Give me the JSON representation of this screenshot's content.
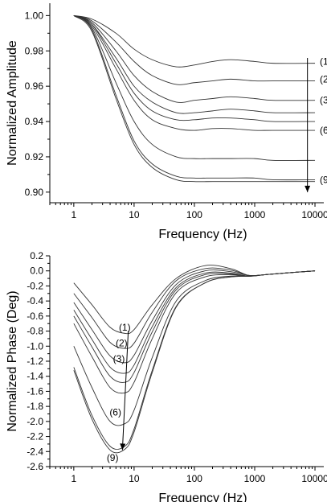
{
  "chart_data": [
    {
      "type": "line",
      "xscale": "log",
      "xlim": [
        0.4,
        14000
      ],
      "ylim": [
        0.894,
        1.007
      ],
      "xlabel": "Frequency (Hz)",
      "ylabel": "Normalized Amplitude",
      "xticks": [
        1,
        10,
        100,
        1000,
        10000
      ],
      "xtick_labels": [
        "1",
        "10",
        "100",
        "1000",
        "10000"
      ],
      "yticks": [
        0.9,
        0.92,
        0.94,
        0.96,
        0.98,
        1.0
      ],
      "ytick_labels": [
        "0.90",
        "0.92",
        "0.94",
        "0.96",
        "0.98",
        "1.00"
      ],
      "grid": false,
      "annotations": [
        {
          "text": "(1)",
          "x": 12000,
          "y": 0.974
        },
        {
          "text": "(2)",
          "x": 12000,
          "y": 0.964
        },
        {
          "text": "(3)",
          "x": 12000,
          "y": 0.952
        },
        {
          "text": "(6)",
          "x": 12000,
          "y": 0.935
        },
        {
          "text": "(9)",
          "x": 12000,
          "y": 0.907
        }
      ],
      "arrow": {
        "x": 7500,
        "y_from": 0.976,
        "y_to": 0.9
      },
      "series": [
        {
          "x": [
            1,
            2,
            5,
            10,
            20,
            50,
            100,
            200,
            400,
            1000,
            2000,
            10000
          ],
          "y": [
            1.0,
            0.998,
            0.99,
            0.981,
            0.975,
            0.971,
            0.972,
            0.974,
            0.975,
            0.974,
            0.973,
            0.973
          ]
        },
        {
          "x": [
            1,
            2,
            5,
            10,
            20,
            50,
            100,
            200,
            400,
            1000,
            2000,
            10000
          ],
          "y": [
            1.0,
            0.997,
            0.985,
            0.974,
            0.966,
            0.961,
            0.962,
            0.963,
            0.964,
            0.963,
            0.963,
            0.963
          ]
        },
        {
          "x": [
            1,
            2,
            5,
            10,
            20,
            50,
            100,
            200,
            400,
            1000,
            2000,
            10000
          ],
          "y": [
            1.0,
            0.996,
            0.98,
            0.966,
            0.957,
            0.951,
            0.952,
            0.953,
            0.954,
            0.953,
            0.952,
            0.952
          ]
        },
        {
          "x": [
            1,
            2,
            5,
            10,
            20,
            50,
            100,
            200,
            400,
            1000,
            2000,
            10000
          ],
          "y": [
            1.0,
            0.995,
            0.976,
            0.96,
            0.951,
            0.945,
            0.945,
            0.946,
            0.947,
            0.946,
            0.945,
            0.945
          ]
        },
        {
          "x": [
            1,
            2,
            5,
            10,
            20,
            50,
            100,
            200,
            400,
            1000,
            2000,
            10000
          ],
          "y": [
            1.0,
            0.995,
            0.973,
            0.956,
            0.946,
            0.941,
            0.941,
            0.942,
            0.942,
            0.941,
            0.94,
            0.94
          ]
        },
        {
          "x": [
            1,
            2,
            5,
            10,
            20,
            50,
            100,
            200,
            400,
            1000,
            2000,
            10000
          ],
          "y": [
            1.0,
            0.994,
            0.97,
            0.952,
            0.941,
            0.936,
            0.935,
            0.936,
            0.936,
            0.935,
            0.935,
            0.935
          ]
        },
        {
          "x": [
            1,
            2,
            5,
            10,
            20,
            50,
            100,
            200,
            400,
            1000,
            2000,
            10000
          ],
          "y": [
            1.0,
            0.993,
            0.962,
            0.94,
            0.927,
            0.92,
            0.919,
            0.919,
            0.919,
            0.919,
            0.918,
            0.918
          ]
        },
        {
          "x": [
            1,
            2,
            5,
            10,
            20,
            50,
            100,
            200,
            400,
            1000,
            2000,
            10000
          ],
          "y": [
            1.0,
            0.992,
            0.955,
            0.929,
            0.916,
            0.909,
            0.908,
            0.908,
            0.908,
            0.908,
            0.907,
            0.907
          ]
        },
        {
          "x": [
            1,
            2,
            5,
            10,
            20,
            50,
            100,
            200,
            400,
            1000,
            2000,
            10000
          ],
          "y": [
            1.0,
            0.991,
            0.953,
            0.927,
            0.914,
            0.907,
            0.906,
            0.906,
            0.906,
            0.906,
            0.906,
            0.906
          ]
        }
      ]
    },
    {
      "type": "line",
      "xscale": "log",
      "xlim": [
        0.4,
        14000
      ],
      "ylim": [
        -2.6,
        0.2
      ],
      "xlabel": "Frequency (Hz)",
      "ylabel": "Normalized Phase (Deg)",
      "xticks": [
        1,
        10,
        100,
        1000,
        10000
      ],
      "xtick_labels": [
        "1",
        "10",
        "100",
        "1000",
        "10000"
      ],
      "yticks": [
        -2.6,
        -2.4,
        -2.2,
        -2.0,
        -1.8,
        -1.6,
        -1.4,
        -1.2,
        -1.0,
        -0.8,
        -0.6,
        -0.4,
        -0.2,
        0.0,
        0.2
      ],
      "ytick_labels": [
        "-2.6",
        "-2.4",
        "-2.2",
        "-2.0",
        "-1.8",
        "-1.6",
        "-1.4",
        "-1.2",
        "-1.0",
        "-0.8",
        "-0.6",
        "-0.4",
        "-0.2",
        "0.0",
        "0.2"
      ],
      "grid": false,
      "annotations": [
        {
          "text": "(1)",
          "x": 7,
          "y": -0.75
        },
        {
          "text": "(2)",
          "x": 6.2,
          "y": -0.96
        },
        {
          "text": "(3)",
          "x": 5.6,
          "y": -1.17
        },
        {
          "text": "(6)",
          "x": 4.9,
          "y": -1.88
        },
        {
          "text": "(9)",
          "x": 4.4,
          "y": -2.48
        }
      ],
      "arrow": {
        "x_from": 8.0,
        "y_from": -0.8,
        "x_to": 6.4,
        "y_to": -2.38
      },
      "series": [
        {
          "x": [
            1,
            2,
            4,
            7,
            10,
            20,
            50,
            150,
            400,
            800,
            1500,
            3000,
            10000
          ],
          "y": [
            -0.16,
            -0.45,
            -0.75,
            -0.83,
            -0.78,
            -0.45,
            -0.1,
            0.07,
            0.03,
            -0.06,
            -0.05,
            -0.03,
            0.0
          ]
        },
        {
          "x": [
            1,
            2,
            4,
            7,
            10,
            20,
            50,
            150,
            400,
            800,
            1500,
            3000,
            10000
          ],
          "y": [
            -0.3,
            -0.62,
            -0.95,
            -1.03,
            -0.96,
            -0.55,
            -0.13,
            0.03,
            0.01,
            -0.06,
            -0.05,
            -0.03,
            0.0
          ]
        },
        {
          "x": [
            1,
            2,
            4,
            7,
            10,
            20,
            50,
            150,
            400,
            800,
            1500,
            3000,
            10000
          ],
          "y": [
            -0.42,
            -0.78,
            -1.13,
            -1.22,
            -1.12,
            -0.66,
            -0.18,
            0.0,
            -0.01,
            -0.06,
            -0.05,
            -0.03,
            0.0
          ]
        },
        {
          "x": [
            1,
            2,
            4,
            7,
            10,
            20,
            50,
            150,
            400,
            800,
            1500,
            3000,
            10000
          ],
          "y": [
            -0.52,
            -0.91,
            -1.28,
            -1.36,
            -1.25,
            -0.74,
            -0.22,
            -0.03,
            -0.03,
            -0.07,
            -0.05,
            -0.03,
            0.0
          ]
        },
        {
          "x": [
            1,
            2,
            4,
            7,
            10,
            20,
            50,
            150,
            400,
            800,
            1500,
            3000,
            10000
          ],
          "y": [
            -0.6,
            -1.01,
            -1.4,
            -1.48,
            -1.35,
            -0.81,
            -0.25,
            -0.05,
            -0.04,
            -0.07,
            -0.05,
            -0.03,
            0.0
          ]
        },
        {
          "x": [
            1,
            2,
            4,
            7,
            10,
            20,
            50,
            150,
            400,
            800,
            1500,
            3000,
            10000
          ],
          "y": [
            -0.7,
            -1.14,
            -1.55,
            -1.62,
            -1.48,
            -0.9,
            -0.29,
            -0.08,
            -0.05,
            -0.07,
            -0.05,
            -0.03,
            0.0
          ]
        },
        {
          "x": [
            1,
            2,
            4,
            7,
            10,
            20,
            50,
            150,
            400,
            800,
            1500,
            3000,
            10000
          ],
          "y": [
            -1.0,
            -1.55,
            -2.0,
            -2.03,
            -1.85,
            -1.15,
            -0.4,
            -0.13,
            -0.07,
            -0.07,
            -0.05,
            -0.03,
            0.0
          ]
        },
        {
          "x": [
            1,
            2,
            4,
            7,
            10,
            20,
            50,
            150,
            400,
            800,
            1500,
            3000,
            10000
          ],
          "y": [
            -1.28,
            -1.92,
            -2.33,
            -2.33,
            -2.1,
            -1.32,
            -0.47,
            -0.16,
            -0.08,
            -0.07,
            -0.05,
            -0.03,
            0.0
          ]
        },
        {
          "x": [
            1,
            2,
            4,
            7,
            10,
            20,
            50,
            150,
            400,
            800,
            1500,
            3000,
            10000
          ],
          "y": [
            -1.32,
            -1.97,
            -2.38,
            -2.37,
            -2.14,
            -1.35,
            -0.48,
            -0.16,
            -0.08,
            -0.07,
            -0.05,
            -0.03,
            0.0
          ]
        }
      ]
    }
  ]
}
